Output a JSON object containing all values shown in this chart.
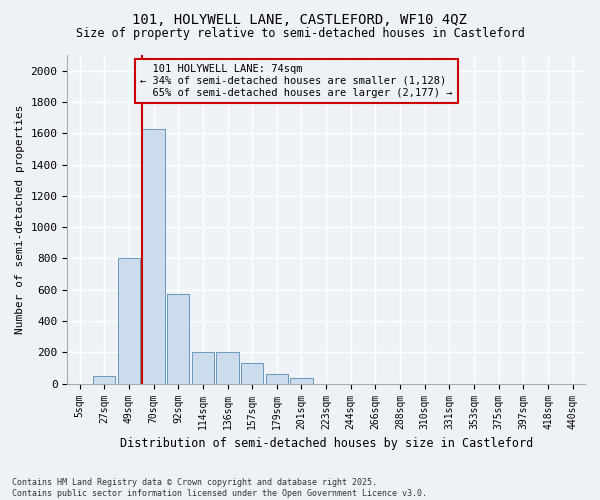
{
  "title1": "101, HOLYWELL LANE, CASTLEFORD, WF10 4QZ",
  "title2": "Size of property relative to semi-detached houses in Castleford",
  "xlabel": "Distribution of semi-detached houses by size in Castleford",
  "ylabel": "Number of semi-detached properties",
  "footnote": "Contains HM Land Registry data © Crown copyright and database right 2025.\nContains public sector information licensed under the Open Government Licence v3.0.",
  "categories": [
    "5sqm",
    "27sqm",
    "49sqm",
    "70sqm",
    "92sqm",
    "114sqm",
    "136sqm",
    "157sqm",
    "179sqm",
    "201sqm",
    "223sqm",
    "244sqm",
    "266sqm",
    "288sqm",
    "310sqm",
    "331sqm",
    "353sqm",
    "375sqm",
    "397sqm",
    "418sqm",
    "440sqm"
  ],
  "bar_values": [
    0,
    50,
    800,
    1625,
    575,
    200,
    200,
    130,
    60,
    35,
    0,
    0,
    0,
    0,
    0,
    0,
    0,
    0,
    0,
    0,
    0
  ],
  "bar_color": "#ccdcec",
  "bar_edge_color": "#6699bb",
  "annotation_box_color": "#cc0000",
  "property_line_label": "101 HOLYWELL LANE: 74sqm",
  "pct_smaller": 34,
  "pct_smaller_count": 1128,
  "pct_larger": 65,
  "pct_larger_count": 2177,
  "ylim": [
    0,
    2100
  ],
  "yticks": [
    0,
    200,
    400,
    600,
    800,
    1000,
    1200,
    1400,
    1600,
    1800,
    2000
  ],
  "background_color": "#eef2f7",
  "grid_color": "#ffffff"
}
